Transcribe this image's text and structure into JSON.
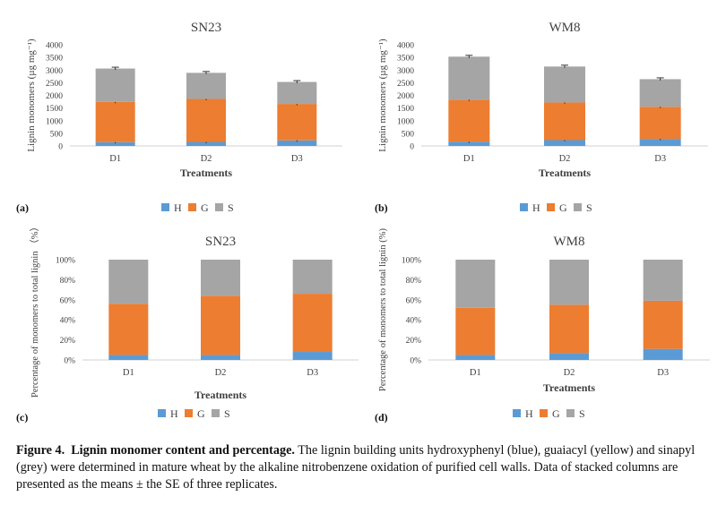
{
  "chart_data": [
    {
      "type": "bar",
      "stacked": true,
      "panel_label": "(a)",
      "title": "SN23",
      "xlabel": "Treatments",
      "ylabel": "Lignin monomers (µg mg⁻¹)",
      "categories": [
        "D1",
        "D2",
        "D3"
      ],
      "ylim": [
        0,
        4000
      ],
      "yticks": [
        0,
        500,
        1000,
        1500,
        2000,
        2500,
        3000,
        3500,
        4000
      ],
      "ytick_labels": [
        "0",
        "500",
        "1000",
        "1500",
        "2000",
        "2500",
        "3000",
        "3500",
        "4000"
      ],
      "error_bars": true,
      "legend_position": "bottom",
      "series": [
        {
          "name": "H",
          "color": "#5b9bd5",
          "values": [
            150,
            160,
            220
          ]
        },
        {
          "name": "G",
          "color": "#ed7d31",
          "values": [
            1590,
            1700,
            1440
          ]
        },
        {
          "name": "S",
          "color": "#a5a5a5",
          "values": [
            1320,
            1030,
            870
          ]
        }
      ]
    },
    {
      "type": "bar",
      "stacked": true,
      "panel_label": "(b)",
      "title": "WM8",
      "xlabel": "Treatments",
      "ylabel": "Lignin monomers (µg mg⁻¹)",
      "categories": [
        "D1",
        "D2",
        "D3"
      ],
      "ylim": [
        0,
        4000
      ],
      "yticks": [
        0,
        500,
        1000,
        1500,
        2000,
        2500,
        3000,
        3500,
        4000
      ],
      "ytick_labels": [
        "0",
        "500",
        "1000",
        "1500",
        "2000",
        "2500",
        "3000",
        "3500",
        "4000"
      ],
      "error_bars": true,
      "legend_position": "bottom",
      "series": [
        {
          "name": "H",
          "color": "#5b9bd5",
          "values": [
            170,
            230,
            280
          ]
        },
        {
          "name": "G",
          "color": "#ed7d31",
          "values": [
            1660,
            1490,
            1270
          ]
        },
        {
          "name": "S",
          "color": "#a5a5a5",
          "values": [
            1700,
            1420,
            1090
          ]
        }
      ]
    },
    {
      "type": "bar",
      "stacked": true,
      "panel_label": "(c)",
      "title": "SN23",
      "xlabel": "Treatments",
      "ylabel": "Percentage of monomers to total lignin （%）",
      "categories": [
        "D1",
        "D2",
        "D3"
      ],
      "ylim": [
        0,
        100
      ],
      "yticks": [
        0,
        20,
        40,
        60,
        80,
        100
      ],
      "ytick_labels": [
        "0%",
        "20%",
        "40%",
        "60%",
        "80%",
        "100%"
      ],
      "error_bars": false,
      "legend_position": "bottom",
      "series": [
        {
          "name": "H",
          "color": "#5b9bd5",
          "values": [
            5,
            5,
            8
          ]
        },
        {
          "name": "G",
          "color": "#ed7d31",
          "values": [
            51,
            59,
            58
          ]
        },
        {
          "name": "S",
          "color": "#a5a5a5",
          "values": [
            44,
            36,
            34
          ]
        }
      ]
    },
    {
      "type": "bar",
      "stacked": true,
      "panel_label": "(d)",
      "title": "WM8",
      "xlabel": "Treatments",
      "ylabel": "Percentage of monomers to total lignin (%)",
      "categories": [
        "D1",
        "D2",
        "D3"
      ],
      "ylim": [
        0,
        100
      ],
      "yticks": [
        0,
        20,
        40,
        60,
        80,
        100
      ],
      "ytick_labels": [
        "0%",
        "20%",
        "40%",
        "60%",
        "80%",
        "100%"
      ],
      "error_bars": false,
      "legend_position": "bottom",
      "series": [
        {
          "name": "H",
          "color": "#5b9bd5",
          "values": [
            5,
            7,
            11
          ]
        },
        {
          "name": "G",
          "color": "#ed7d31",
          "values": [
            47,
            48,
            48
          ]
        },
        {
          "name": "S",
          "color": "#a5a5a5",
          "values": [
            48,
            45,
            41
          ]
        }
      ]
    }
  ],
  "caption": {
    "label": "Figure 4.",
    "title": "Lignin monomer content and percentage.",
    "text": "The lignin building units hydroxyphenyl (blue), guaiacyl (yellow) and sinapyl (grey) were determined in mature wheat by the alkaline nitrobenzene oxidation of purified cell walls. Data of stacked columns are presented as the means ± the SE of three replicates."
  }
}
